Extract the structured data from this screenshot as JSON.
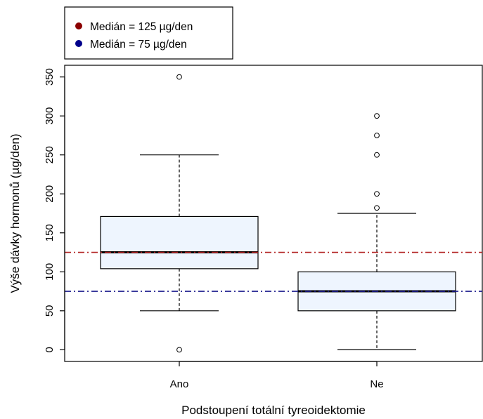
{
  "chart_data": {
    "type": "boxplot",
    "xlabel": "Podstoupení totální tyreoidektomie",
    "ylabel": "Výše dávky hormonů (µg/den)",
    "ylim": [
      -15,
      365
    ],
    "yticks": [
      0,
      50,
      100,
      150,
      200,
      250,
      300,
      350
    ],
    "categories": [
      "Ano",
      "Ne"
    ],
    "boxes": [
      {
        "category": "Ano",
        "whisker_low": 50,
        "q1": 104,
        "median": 125,
        "q3": 171,
        "whisker_high": 250,
        "outliers": [
          0,
          350
        ]
      },
      {
        "category": "Ne",
        "whisker_low": 0,
        "q1": 50,
        "median": 75,
        "q3": 100,
        "whisker_high": 175,
        "outliers": [
          182,
          200,
          250,
          275,
          300
        ]
      }
    ],
    "reference_lines": [
      {
        "value": 125,
        "color": "#b22222",
        "style": "dash-dot"
      },
      {
        "value": 75,
        "color": "#1a1a8c",
        "style": "dash-dot"
      }
    ],
    "legend": {
      "position": "top-left, outside plot",
      "entries": [
        {
          "label": "Medián = 125 µg/den",
          "color": "#8b0000"
        },
        {
          "label": "Medián = 75 µg/den",
          "color": "#00008b"
        }
      ]
    },
    "box_fill": "#eef5fe",
    "grid": false
  }
}
